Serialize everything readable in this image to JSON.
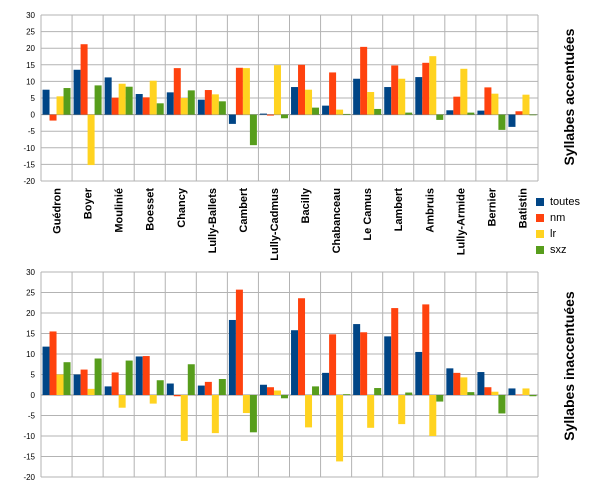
{
  "chart_data": [
    {
      "type": "bar",
      "title": "Syllabes accentuées",
      "ylim": [
        -20,
        30
      ],
      "yticks": [
        30,
        25,
        20,
        15,
        10,
        5,
        0,
        -5,
        -10,
        -15,
        -20
      ],
      "grid": true,
      "categories": [
        "Guédron",
        "Boyer",
        "Moulinié",
        "Boesset",
        "Chancy",
        "Lully-Ballets",
        "Cambert",
        "Lully-Cadmus",
        "Bacilly",
        "Chabanceau",
        "Le Camus",
        "Lambert",
        "Ambruis",
        "Lully-Armide",
        "Bernier",
        "Batistin"
      ],
      "series": [
        {
          "name": "toutes",
          "color": "#004586",
          "values": [
            7.5,
            13.5,
            11.2,
            6.2,
            6.7,
            4.5,
            -2.8,
            0.3,
            8.3,
            2.7,
            10.8,
            8.3,
            11.3,
            1.3,
            1.2,
            -3.7
          ]
        },
        {
          "name": "nm",
          "color": "#ff420e",
          "values": [
            -1.8,
            21.2,
            5.1,
            5.2,
            14.0,
            7.4,
            14.1,
            -0.3,
            15.0,
            12.7,
            20.4,
            14.8,
            15.6,
            5.4,
            8.2,
            1.0
          ]
        },
        {
          "name": "lr",
          "color": "#ffd320",
          "values": [
            5.5,
            -15.2,
            9.3,
            10.2,
            5.0,
            6.1,
            14.0,
            14.9,
            7.5,
            1.5,
            6.8,
            10.8,
            17.6,
            13.8,
            6.3,
            6.0
          ]
        },
        {
          "name": "sxz",
          "color": "#579d1c",
          "values": [
            8.0,
            8.8,
            8.4,
            3.4,
            7.3,
            4.0,
            -9.2,
            -1.1,
            2.1,
            0.2,
            1.7,
            0.6,
            -1.6,
            0.6,
            -4.6,
            -0.2
          ]
        }
      ]
    },
    {
      "type": "bar",
      "title": "Syllabes inaccentuées",
      "ylim": [
        -20,
        30
      ],
      "yticks": [
        30,
        25,
        20,
        15,
        10,
        5,
        0,
        -5,
        -10,
        -15,
        -20
      ],
      "grid": true,
      "categories": [
        "Guédron",
        "Boyer",
        "Moulinié",
        "Boesset",
        "Chancy",
        "Lully-Ballets",
        "Cambert",
        "Lully-Cadmus",
        "Bacilly",
        "Chabanceau",
        "Le Camus",
        "Lambert",
        "Ambruis",
        "Lully-Armide",
        "Bernier",
        "Batistin"
      ],
      "series": [
        {
          "name": "toutes",
          "color": "#004586",
          "values": [
            11.8,
            5.0,
            2.1,
            9.4,
            2.8,
            2.3,
            18.3,
            2.5,
            15.8,
            5.4,
            17.3,
            14.3,
            10.5,
            6.5,
            5.6,
            1.6
          ]
        },
        {
          "name": "nm",
          "color": "#ff420e",
          "values": [
            15.5,
            6.2,
            5.5,
            9.5,
            -0.3,
            3.2,
            25.7,
            1.9,
            23.6,
            14.8,
            15.3,
            21.2,
            22.1,
            5.4,
            1.9,
            0.1
          ]
        },
        {
          "name": "lr",
          "color": "#ffd320",
          "values": [
            5.0,
            1.5,
            -3.1,
            -2.1,
            -11.2,
            -9.3,
            -4.4,
            1.1,
            -7.9,
            -16.2,
            -8.0,
            -7.1,
            -10.0,
            4.3,
            0.8,
            1.6
          ]
        },
        {
          "name": "sxz",
          "color": "#579d1c",
          "values": [
            8.0,
            8.9,
            8.4,
            3.6,
            7.5,
            3.9,
            -9.1,
            -0.8,
            2.1,
            0.2,
            1.7,
            0.6,
            -1.6,
            0.7,
            -4.5,
            -0.3
          ]
        }
      ]
    }
  ]
}
